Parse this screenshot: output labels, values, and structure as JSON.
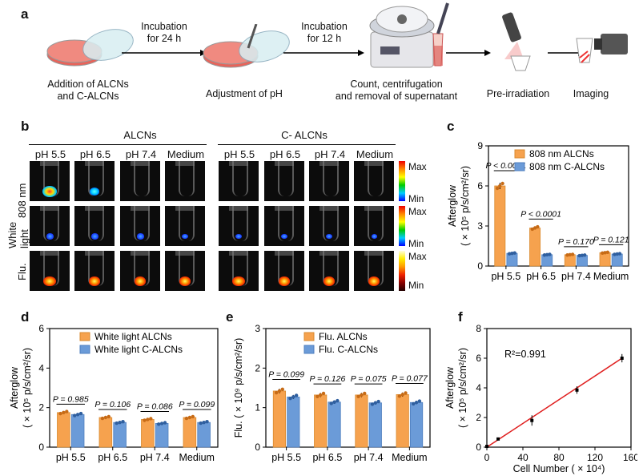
{
  "panel_a": {
    "label": "a",
    "step1": [
      "Addition of  ALCNs",
      "and C-ALCNs"
    ],
    "arrow1": [
      "Incubation",
      "for 24 h"
    ],
    "step2": "Adjustment of pH",
    "arrow2": [
      "Incubation",
      "for 12 h"
    ],
    "step3": [
      "Count, centrifugation",
      "and removal of supernatant"
    ],
    "step4": "Pre-irradiation",
    "step5": "Imaging"
  },
  "panel_b": {
    "label": "b",
    "group1": "ALCNs",
    "group2": "C- ALCNs",
    "columns": [
      "pH 5.5",
      "pH 6.5",
      "pH 7.4",
      "Medium",
      "pH 5.5",
      "pH 6.5",
      "pH 7.4",
      "Medium"
    ],
    "rows": [
      "808 nm",
      "White light",
      "Flu."
    ],
    "scale_max": "Max",
    "scale_min": "Min"
  },
  "chart_data": [
    {
      "id": "c",
      "type": "bar",
      "label": "c",
      "categories": [
        "pH 5.5",
        "pH 6.5",
        "pH 7.4",
        "Medium"
      ],
      "series": [
        {
          "name": "808 nm ALCNs",
          "values": [
            6.0,
            2.85,
            0.85,
            1.0
          ],
          "color": "#f6a24e"
        },
        {
          "name": "808 nm C-ALCNs",
          "values": [
            0.95,
            0.85,
            0.8,
            0.9
          ],
          "color": "#6b9bd8"
        }
      ],
      "pvalues": [
        "P < 0.0001",
        "P < 0.0001",
        "P = 0.170",
        "P = 0.121"
      ],
      "ylabel_line1": "Afterglow",
      "ylabel_line2": "( × 10⁵ p/s/cm²/sr)",
      "ylim": [
        0,
        9
      ],
      "yticks": [
        "0",
        "3",
        "6",
        "9"
      ]
    },
    {
      "id": "d",
      "type": "bar",
      "label": "d",
      "categories": [
        "pH 5.5",
        "pH 6.5",
        "pH 7.4",
        "Medium"
      ],
      "series": [
        {
          "name": "White light ALCNs",
          "values": [
            1.75,
            1.5,
            1.4,
            1.5
          ],
          "color": "#f6a24e"
        },
        {
          "name": "White light C-ALCNs",
          "values": [
            1.65,
            1.25,
            1.2,
            1.25
          ],
          "color": "#6b9bd8"
        }
      ],
      "pvalues": [
        "P = 0.985",
        "P = 0.106",
        "P = 0.086",
        "P = 0.099"
      ],
      "ylabel_line1": "Afterglow",
      "ylabel_line2": "( × 10⁵ p/s/cm²/sr)",
      "ylim": [
        0,
        6
      ],
      "yticks": [
        "0",
        "2",
        "4",
        "6"
      ]
    },
    {
      "id": "e",
      "type": "bar",
      "label": "e",
      "categories": [
        "pH 5.5",
        "pH 6.5",
        "pH 7.4",
        "Medium"
      ],
      "series": [
        {
          "name": "Flu. ALCNs",
          "values": [
            1.42,
            1.32,
            1.32,
            1.33
          ],
          "color": "#f6a24e"
        },
        {
          "name": "Flu. C-ALCNs",
          "values": [
            1.27,
            1.14,
            1.12,
            1.13
          ],
          "color": "#6b9bd8"
        }
      ],
      "pvalues": [
        "P = 0.099",
        "P = 0.126",
        "P = 0.075",
        "P = 0.077"
      ],
      "ylabel": "Flu. ( × 10⁹ p/s/cm²/sr)",
      "ylim": [
        0,
        3
      ],
      "yticks": [
        "0",
        "1",
        "2",
        "3"
      ]
    },
    {
      "id": "f",
      "type": "scatter",
      "label": "f",
      "x": [
        0,
        12.5,
        50,
        100,
        150
      ],
      "y": [
        0.05,
        0.55,
        1.8,
        3.85,
        6.0
      ],
      "fit": [
        [
          0,
          0
        ],
        [
          150,
          6.0
        ]
      ],
      "annotation": "R²=0.991",
      "xlabel": "Cell Number ( × 10⁴)",
      "ylabel_line1": "Afterglow",
      "ylabel_line2": "( × 10⁵ p/s/cm²/sr)",
      "xlim": [
        0,
        160
      ],
      "ylim": [
        0,
        8
      ],
      "xticks": [
        "0",
        "40",
        "80",
        "120",
        "160"
      ],
      "yticks": [
        "0",
        "2",
        "4",
        "6",
        "8"
      ]
    }
  ]
}
